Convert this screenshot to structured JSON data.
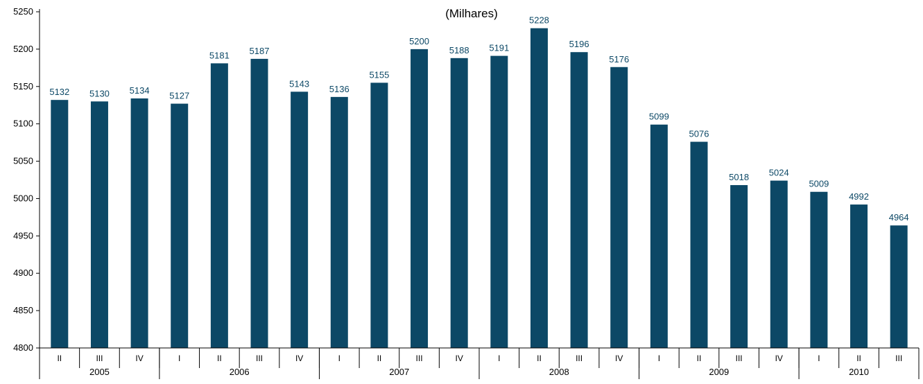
{
  "chart_data": {
    "type": "bar",
    "title": "(Milhares)",
    "xlabel": "",
    "ylabel": "",
    "ylim": [
      4800,
      5250
    ],
    "yticks": [
      4800,
      4850,
      4900,
      4950,
      5000,
      5050,
      5100,
      5150,
      5200,
      5250
    ],
    "grid": false,
    "legend": "none",
    "categories": [
      "II",
      "III",
      "IV",
      "I",
      "II",
      "III",
      "IV",
      "I",
      "II",
      "III",
      "IV",
      "I",
      "II",
      "III",
      "IV",
      "I",
      "II",
      "III",
      "IV",
      "I",
      "II",
      "III"
    ],
    "values": [
      5132,
      5130,
      5134,
      5127,
      5181,
      5187,
      5143,
      5136,
      5155,
      5200,
      5188,
      5191,
      5228,
      5196,
      5176,
      5099,
      5076,
      5018,
      5024,
      5009,
      4992,
      4964
    ],
    "years": [
      {
        "label": "2005",
        "count": 3
      },
      {
        "label": "2006",
        "count": 4
      },
      {
        "label": "2007",
        "count": 4
      },
      {
        "label": "2008",
        "count": 4
      },
      {
        "label": "2009",
        "count": 4
      },
      {
        "label": "2010",
        "count": 3
      }
    ],
    "bar_color": "#0c4866",
    "label_color": "#0c4866"
  }
}
